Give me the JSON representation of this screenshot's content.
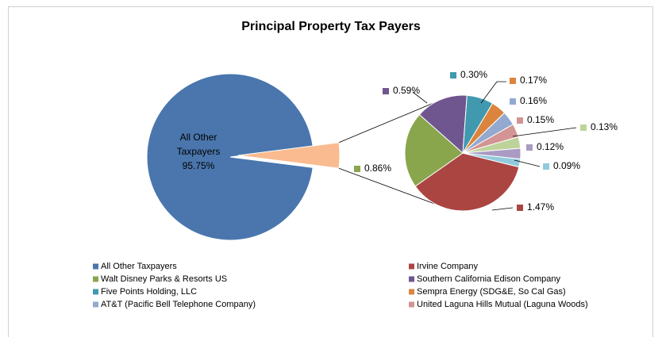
{
  "chart_data": {
    "type": "pie-of-pie",
    "title": "Principal Property Tax Payers",
    "categories": [
      "All Other Taxpayers",
      "Irvine Company",
      "Walt Disney Parks & Resorts US",
      "Southern California Edison Company",
      "Five Points Holding, LLC",
      "Sempra Energy (SDG&E, So Cal Gas)",
      "AT&T (Pacific Bell Telephone Company)",
      "United Laguna Hills Mutual (Laguna Woods)",
      null,
      null,
      null
    ],
    "values": [
      95.75,
      1.47,
      0.86,
      0.59,
      0.3,
      0.17,
      0.16,
      0.15,
      0.13,
      0.12,
      0.09
    ],
    "value_labels": [
      "95.75%",
      "1.47%",
      "0.86%",
      "0.59%",
      "0.30%",
      "0.17%",
      "0.16%",
      "0.15%",
      "0.13%",
      "0.12%",
      "0.09%"
    ],
    "colors": [
      "#4a76ad",
      "#ab4542",
      "#89a64c",
      "#70568f",
      "#4199b0",
      "#db843d",
      "#93a9d0",
      "#d39493",
      "#bed39a",
      "#a99bc3",
      "#91cadc"
    ],
    "second_pie_count": 10,
    "other_color": "#f9bb8f",
    "legend": "bottom"
  }
}
